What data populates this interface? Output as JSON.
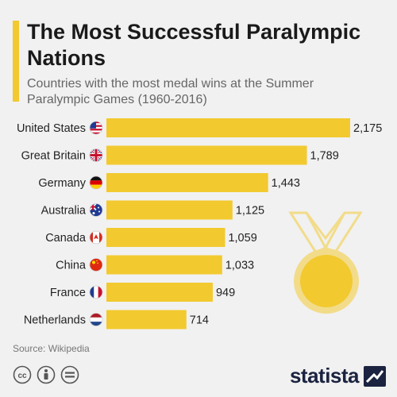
{
  "title": "The Most Successful Paralympic Nations",
  "subtitle": "Countries with the most medal wins at the Summer Paralympic Games (1960-2016)",
  "source": "Source: Wikipedia",
  "brand": "statista",
  "colors": {
    "bar": "#f2c92f",
    "accent": "#f2c92f",
    "background": "#f1f1f1"
  },
  "icons": [
    "cc-icon",
    "person-icon",
    "equals-icon",
    "statista-logo-icon",
    "medal-icon"
  ],
  "chart_data": {
    "type": "bar",
    "orientation": "horizontal",
    "categories": [
      "United States",
      "Great Britain",
      "Germany",
      "Australia",
      "Canada",
      "China",
      "France",
      "Netherlands"
    ],
    "flags": [
      "us-flag-icon",
      "gb-flag-icon",
      "de-flag-icon",
      "au-flag-icon",
      "ca-flag-icon",
      "cn-flag-icon",
      "fr-flag-icon",
      "nl-flag-icon"
    ],
    "values": [
      2175,
      1789,
      1443,
      1125,
      1059,
      1033,
      949,
      714
    ],
    "value_labels": [
      "2,175",
      "1,789",
      "1,443",
      "1,125",
      "1,059",
      "1,033",
      "949",
      "714"
    ],
    "xlim": [
      0,
      2175
    ],
    "grid": false,
    "legend": "none"
  }
}
